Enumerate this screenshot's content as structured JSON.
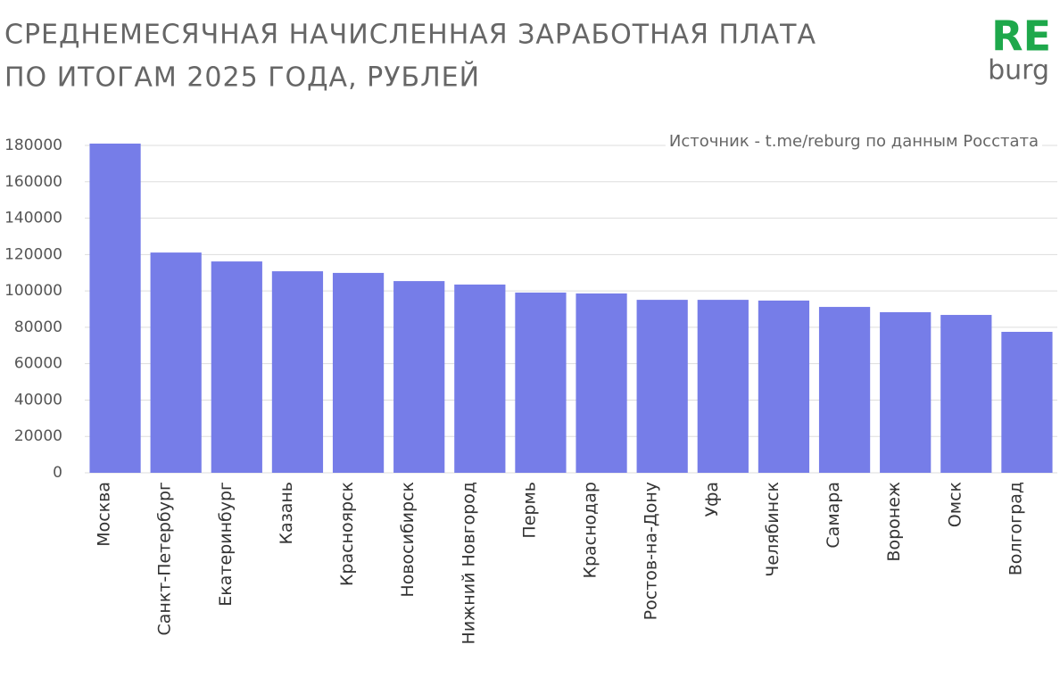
{
  "chart_data": {
    "type": "bar",
    "title": [
      "СРЕДНЕМЕСЯЧНАЯ НАЧИСЛЕННАЯ ЗАРАБОТНАЯ ПЛАТА",
      "ПО ИТОГАМ 2025 ГОДА, РУБЛЕЙ"
    ],
    "logo": [
      "RE",
      "burg"
    ],
    "source": "Источник - t.me/reburg по данным Росстата",
    "categories": [
      "Москва",
      "Санкт-Петербург",
      "Екатеринбург",
      "Казань",
      "Красноярск",
      "Новосибирск",
      "Нижний Новгород",
      "Пермь",
      "Краснодар",
      "Ростов-на-Дону",
      "Уфа",
      "Челябинск",
      "Самара",
      "Воронеж",
      "Омск",
      "Волгоград"
    ],
    "values": [
      181000,
      121100,
      116200,
      110800,
      109900,
      105400,
      103500,
      99100,
      98600,
      95100,
      95100,
      94700,
      91200,
      88300,
      86800,
      77500
    ],
    "color": "#767de8",
    "ylim": [
      0,
      180000
    ],
    "yticks": [
      0,
      20000,
      40000,
      60000,
      80000,
      100000,
      120000,
      140000,
      160000,
      180000
    ],
    "grid": true
  }
}
